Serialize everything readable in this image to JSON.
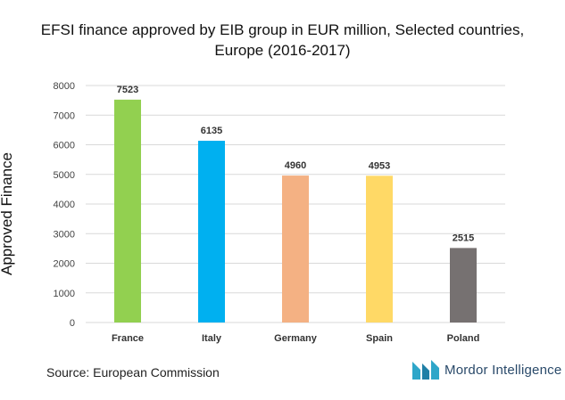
{
  "chart_data": {
    "type": "bar",
    "title_lines": [
      "EFSI finance approved by EIB group in EUR million, Selected countries,",
      "Europe (2016-2017)"
    ],
    "xlabel": "",
    "ylabel": "Approved Finance",
    "categories": [
      "France",
      "Italy",
      "Germany",
      "Spain",
      "Poland"
    ],
    "values": [
      7523,
      6135,
      4960,
      4953,
      2515
    ],
    "data_labels": [
      "7523",
      "6135",
      "4960",
      "4953",
      "2515"
    ],
    "colors": [
      "#92d050",
      "#00b0f0",
      "#f4b183",
      "#ffd966",
      "#767171"
    ],
    "ylim": [
      0,
      8000
    ],
    "yticks": [
      0,
      1000,
      2000,
      3000,
      4000,
      5000,
      6000,
      7000,
      8000
    ],
    "grid": true
  },
  "footer": {
    "source": "Source: European Commission",
    "brand": "Mordor Intelligence",
    "brand_color": "#2a4a6a",
    "logo_colors": [
      "#2ea6c9",
      "#1f7fa6"
    ]
  }
}
